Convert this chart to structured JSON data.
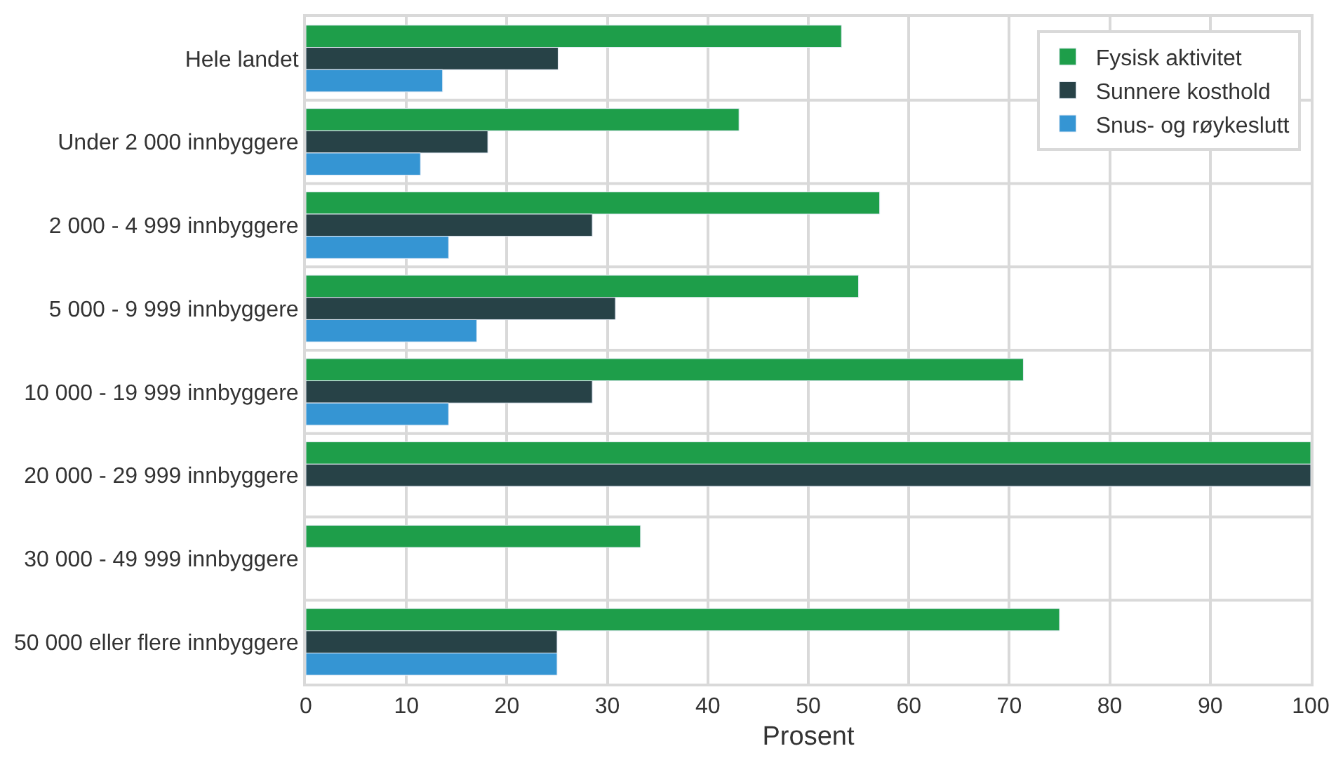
{
  "chart_data": {
    "type": "bar",
    "orientation": "horizontal",
    "xlabel": "Prosent",
    "categories": [
      "Hele landet",
      "Under 2 000 innbyggere",
      "2 000 - 4 999 innbyggere",
      "5 000 - 9 999 innbyggere",
      "10 000 - 19 999 innbyggere",
      "20 000 - 29 999 innbyggere",
      "30 000 - 49 999 innbyggere",
      "50 000 eller flere innbyggere"
    ],
    "series": [
      {
        "name": "Fysisk aktivitet",
        "color": "#1e9e4a",
        "values": [
          53.3,
          43.1,
          57.1,
          55.0,
          71.4,
          100,
          33.3,
          75
        ]
      },
      {
        "name": "Sunnere kosthold",
        "color": "#274247",
        "values": [
          25.1,
          18.1,
          28.5,
          30.8,
          28.5,
          100,
          null,
          25
        ]
      },
      {
        "name": "Snus- og røykeslutt",
        "color": "#3595d3",
        "values": [
          13.6,
          11.4,
          14.2,
          17.0,
          14.2,
          null,
          null,
          25
        ]
      }
    ],
    "xlim": [
      0,
      100
    ],
    "xticks": [
      0,
      10,
      20,
      30,
      40,
      50,
      60,
      70,
      80,
      90,
      100
    ],
    "grid": true,
    "legend": "top right"
  }
}
